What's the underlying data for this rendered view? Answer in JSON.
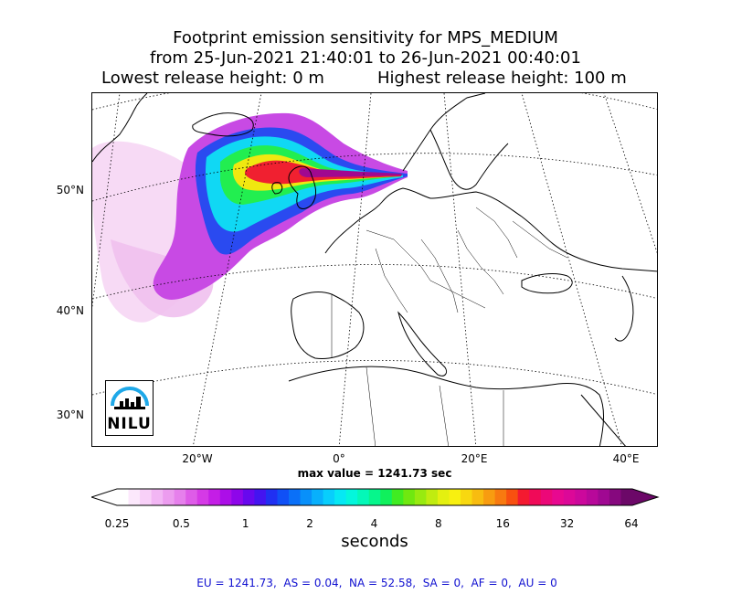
{
  "title": {
    "line1": "Footprint emission sensitivity for MPS_MEDIUM",
    "line2": "from 25-Jun-2021 21:40:01 to 26-Jun-2021 00:40:01",
    "lowest": "Lowest release height: 0 m",
    "highest": "Highest release height: 100 m"
  },
  "map": {
    "lat_labels": [
      "50°N",
      "40°N",
      "30°N"
    ],
    "lon_labels": [
      "20°W",
      "0°",
      "20°E",
      "40°E"
    ],
    "logo_text": "NILU"
  },
  "max_value": "max value = 1241.73 sec",
  "colorbar": {
    "ticks": [
      "0.25",
      "0.5",
      "1",
      "2",
      "4",
      "8",
      "16",
      "32",
      "64"
    ],
    "label": "seconds",
    "colors": [
      "#ffffff",
      "#fce8fc",
      "#f8d0f8",
      "#f2b6f4",
      "#ec9cef",
      "#e680ec",
      "#de5ce8",
      "#d53ae6",
      "#c41ee6",
      "#ac0ee8",
      "#8e06ea",
      "#6808ee",
      "#4414f0",
      "#2030f2",
      "#1050f6",
      "#0a70f8",
      "#0890fa",
      "#08b0fc",
      "#08cefc",
      "#06e8f4",
      "#04f6dc",
      "#04f8b8",
      "#06f68c",
      "#10f05c",
      "#40ec22",
      "#70e810",
      "#98ea10",
      "#c0ec10",
      "#e4f010",
      "#f8f010",
      "#f8d810",
      "#f8bc10",
      "#f89c10",
      "#f87a10",
      "#f85010",
      "#f41a30",
      "#f00a58",
      "#ec0878",
      "#e80890",
      "#dc0898",
      "#cc089c",
      "#b8089a",
      "#a00892",
      "#86087e",
      "#6c0868"
    ]
  },
  "regions_summary": "EU = 1241.73,  AS = 0.04,  NA = 52.58,  SA = 0,  AF = 0,  AU = 0"
}
